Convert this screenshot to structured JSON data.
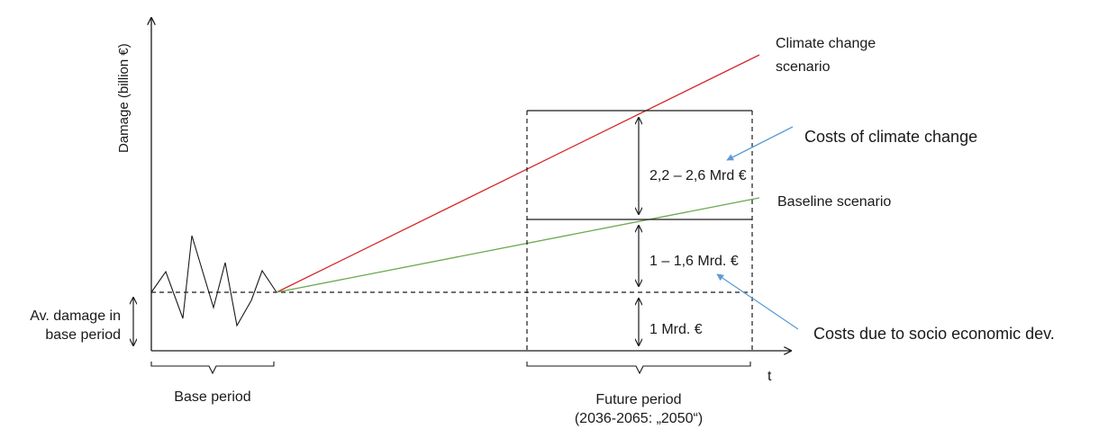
{
  "labels": {
    "y_axis": "Damage (billion €)",
    "x_axis": "t",
    "av_damage_line1": "Av. damage in",
    "av_damage_line2": "base period",
    "base_period": "Base period",
    "future_period_line1": "Future period",
    "future_period_line2": "(2036-2065: „2050“)",
    "climate_line1": "Climate change",
    "climate_line2": "scenario",
    "baseline": "Baseline scenario",
    "costs_climate": "Costs of climate change",
    "costs_socio": "Costs due to socio economic dev.",
    "range_top": "2,2 – 2,6 Mrd €",
    "range_mid": "1 – 1,6 Mrd. €",
    "range_bottom": "1 Mrd. €"
  },
  "colors": {
    "climate_line": "#d62728",
    "baseline_line": "#6aa84f",
    "callout_arrow": "#5b9bd5",
    "ink": "#1a1a1a"
  }
}
